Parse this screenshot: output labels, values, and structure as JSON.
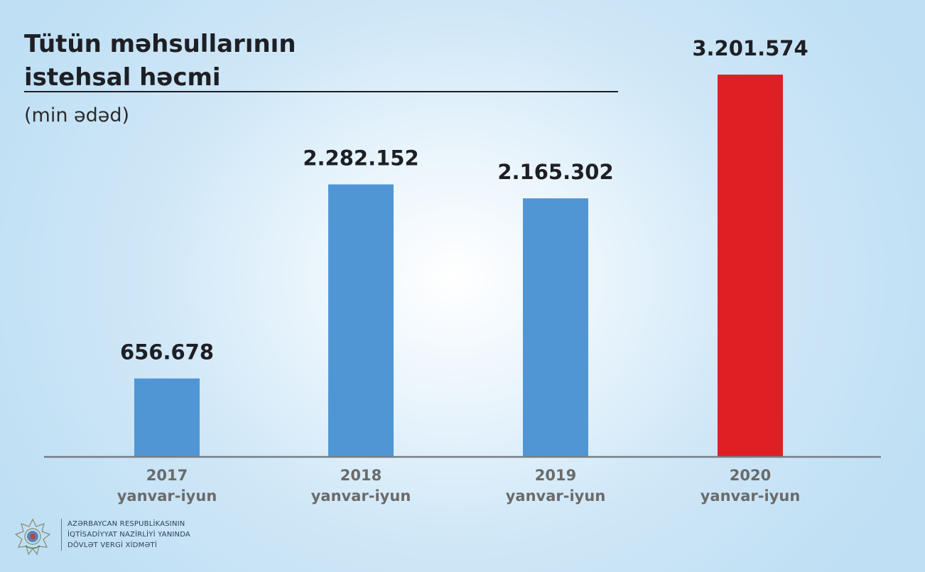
{
  "chart_data": {
    "type": "bar",
    "title": "Tütün məhsullarının",
    "subtitle": "istehsal həcmi",
    "unit": "(min ədəd)",
    "categories": [
      "2017",
      "2018",
      "2019",
      "2020"
    ],
    "category_sublabels": [
      "yanvar-iyun",
      "yanvar-iyun",
      "yanvar-iyun",
      "yanvar-iyun"
    ],
    "values": [
      656678,
      2282152,
      2165302,
      3201574
    ],
    "value_labels": [
      "656.678",
      "2.282.152",
      "2.165.302",
      "3.201.574"
    ],
    "bar_colors": [
      "#5096d4",
      "#5096d4",
      "#5096d4",
      "#e01f25"
    ],
    "ylim": [
      0,
      3201574
    ],
    "grid": false,
    "legend": "none"
  },
  "footer": {
    "org_line1": "AZƏRBAYCAN RESPUBLİKASININ",
    "org_line2": "İQTİSADİYYAT NAZİRLİYİ YANINDA",
    "org_line3": "DÖVLƏT VERGİ XİDMƏTİ",
    "emblem": "state-emblem-icon"
  }
}
